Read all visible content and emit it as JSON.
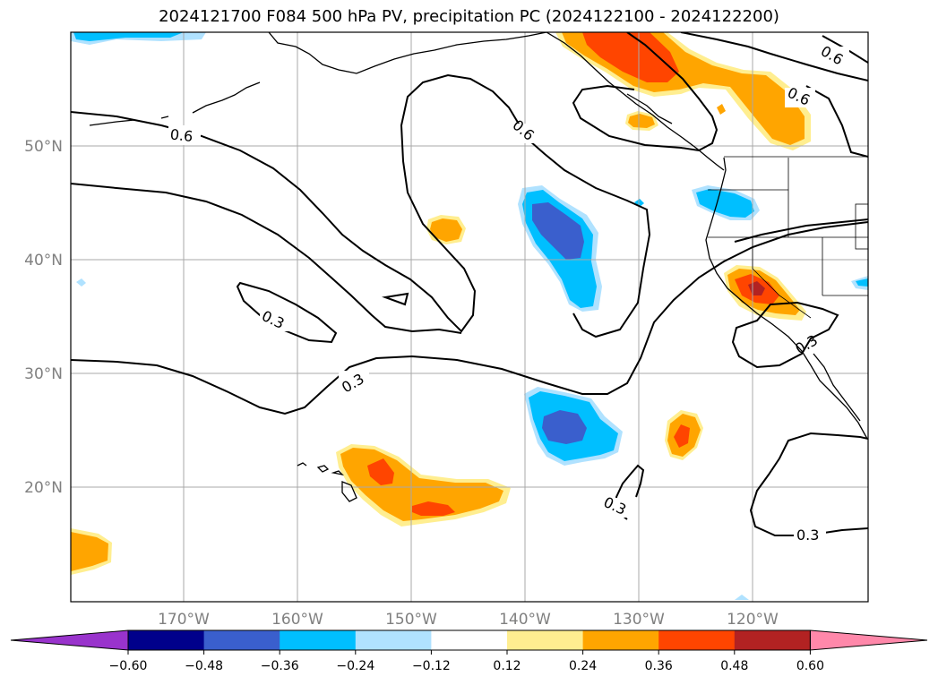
{
  "title": "2024121700 F084 500 hPa PV, precipitation PC (2024122100 - 2024122200)",
  "map": {
    "lat_labels": [
      "50°N",
      "40°N",
      "30°N",
      "20°N"
    ],
    "lon_labels": [
      "170°W",
      "160°W",
      "150°W",
      "140°W",
      "130°W",
      "120°W"
    ],
    "contour_labels": [
      "0.6",
      "0.6",
      "0.6",
      "0.6",
      "0.3",
      "0.3",
      "0.3",
      "0.3",
      "0.3"
    ]
  },
  "colorbar": {
    "ticks": [
      "−0.60",
      "−0.48",
      "−0.36",
      "−0.24",
      "−0.12",
      "0.12",
      "0.24",
      "0.36",
      "0.48",
      "0.60"
    ],
    "colors": [
      "#9933cc",
      "#00008b",
      "#3a5fcd",
      "#00bfff",
      "#b0e2ff",
      "#ffffff",
      "#ffee90",
      "#ffa500",
      "#ff4500",
      "#b22222",
      "#ff88aa"
    ]
  }
}
